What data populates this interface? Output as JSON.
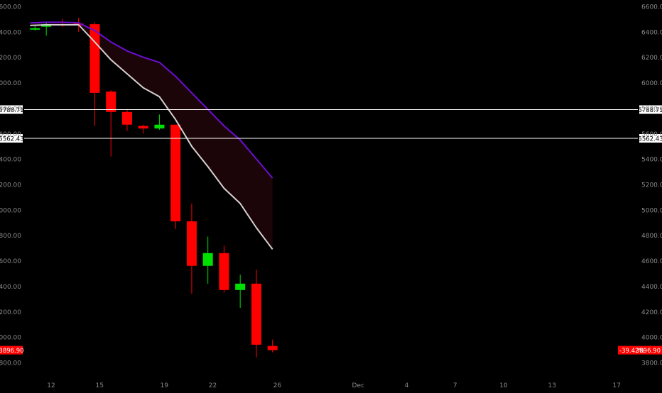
{
  "chart_data": {
    "type": "candlestick",
    "y_axis": {
      "min": 3800,
      "max": 6650,
      "ticks": [
        3800,
        4000,
        4200,
        4400,
        4600,
        4800,
        5000,
        5200,
        5400,
        5600,
        5800,
        6000,
        6200,
        6400,
        6600
      ],
      "tick_labels": [
        "3800.00",
        "4000.00",
        "4200.00",
        "4400.00",
        "4600.00",
        "4800.00",
        "5000.00",
        "5200.00",
        "5400.00",
        "5600.00",
        "5800.00",
        "6000.00",
        "6200.00",
        "6400.00",
        "6600.00"
      ],
      "position": "both sides"
    },
    "x_axis": {
      "start_day": 10.7,
      "end_day": 44.3,
      "ticks": [
        {
          "day": 12,
          "label": "12"
        },
        {
          "day": 15,
          "label": "15"
        },
        {
          "day": 19,
          "label": "19"
        },
        {
          "day": 22,
          "label": "22"
        },
        {
          "day": 26,
          "label": "26"
        },
        {
          "day": 31,
          "label": "Dec"
        },
        {
          "day": 34,
          "label": "4"
        },
        {
          "day": 37,
          "label": "7"
        },
        {
          "day": 40,
          "label": "10"
        },
        {
          "day": 43,
          "label": "13"
        },
        {
          "day": 47,
          "label": "17"
        }
      ]
    },
    "candles": [
      {
        "day": 11,
        "open": 6425,
        "high": 6450,
        "low": 6410,
        "close": 6428
      },
      {
        "day": 11.7,
        "open": 6440,
        "high": 6480,
        "low": 6370,
        "close": 6460
      },
      {
        "day": 12.7,
        "open": 6460,
        "high": 6500,
        "low": 6440,
        "close": 6455
      },
      {
        "day": 13.7,
        "open": 6465,
        "high": 6510,
        "low": 6400,
        "close": 6450
      },
      {
        "day": 14.7,
        "open": 6460,
        "high": 6475,
        "low": 5660,
        "close": 5920
      },
      {
        "day": 15.7,
        "open": 5930,
        "high": 5940,
        "low": 5420,
        "close": 5770
      },
      {
        "day": 16.7,
        "open": 5770,
        "high": 5790,
        "low": 5620,
        "close": 5670
      },
      {
        "day": 17.7,
        "open": 5660,
        "high": 5670,
        "low": 5600,
        "close": 5640
      },
      {
        "day": 18.7,
        "open": 5640,
        "high": 5750,
        "low": 5630,
        "close": 5670
      },
      {
        "day": 19.7,
        "open": 5670,
        "high": 5670,
        "low": 4850,
        "close": 4910
      },
      {
        "day": 20.7,
        "open": 4910,
        "high": 5050,
        "low": 4340,
        "close": 4560
      },
      {
        "day": 21.7,
        "open": 4560,
        "high": 4790,
        "low": 4420,
        "close": 4660
      },
      {
        "day": 22.7,
        "open": 4660,
        "high": 4720,
        "low": 4350,
        "close": 4370
      },
      {
        "day": 23.7,
        "open": 4370,
        "high": 4490,
        "low": 4230,
        "close": 4420
      },
      {
        "day": 24.7,
        "open": 4420,
        "high": 4530,
        "low": 3840,
        "close": 3940
      },
      {
        "day": 25.7,
        "open": 3930,
        "high": 3980,
        "low": 3880,
        "close": 3897
      }
    ],
    "moving_averages": [
      {
        "color": "#6a0fd4",
        "width": 2,
        "points": [
          [
            10.7,
            6470
          ],
          [
            11.7,
            6475
          ],
          [
            12.7,
            6475
          ],
          [
            13.7,
            6470
          ],
          [
            14.7,
            6410
          ],
          [
            15.7,
            6320
          ],
          [
            16.7,
            6250
          ],
          [
            17.7,
            6200
          ],
          [
            18.7,
            6160
          ],
          [
            19.7,
            6050
          ],
          [
            20.7,
            5920
          ],
          [
            21.7,
            5790
          ],
          [
            22.7,
            5660
          ],
          [
            23.7,
            5550
          ],
          [
            24.7,
            5400
          ],
          [
            25.7,
            5250
          ]
        ]
      },
      {
        "color": "#d6d0d0",
        "width": 2,
        "points": [
          [
            10.7,
            6450
          ],
          [
            11.7,
            6455
          ],
          [
            12.7,
            6455
          ],
          [
            13.7,
            6455
          ],
          [
            14.7,
            6320
          ],
          [
            15.7,
            6180
          ],
          [
            16.7,
            6070
          ],
          [
            17.7,
            5960
          ],
          [
            18.7,
            5890
          ],
          [
            19.7,
            5710
          ],
          [
            20.7,
            5500
          ],
          [
            21.7,
            5340
          ],
          [
            22.7,
            5170
          ],
          [
            23.7,
            5050
          ],
          [
            24.7,
            4860
          ],
          [
            25.7,
            4690
          ]
        ]
      }
    ],
    "band_fill_color": "#1c0508",
    "horizontal_lines": [
      {
        "value": 5788.71,
        "label": "5788.71"
      },
      {
        "value": 5562.43,
        "label": "5562.43"
      }
    ],
    "last_price": {
      "value": 3896.9,
      "label": "3896.90",
      "change_label": "-39.42%"
    },
    "colors": {
      "up": "#00e000",
      "down": "#ff0000",
      "background": "#000000",
      "axis_text": "#8a8a8a",
      "level_line": "#ffffff",
      "last_price_bg": "#ff0000"
    }
  }
}
